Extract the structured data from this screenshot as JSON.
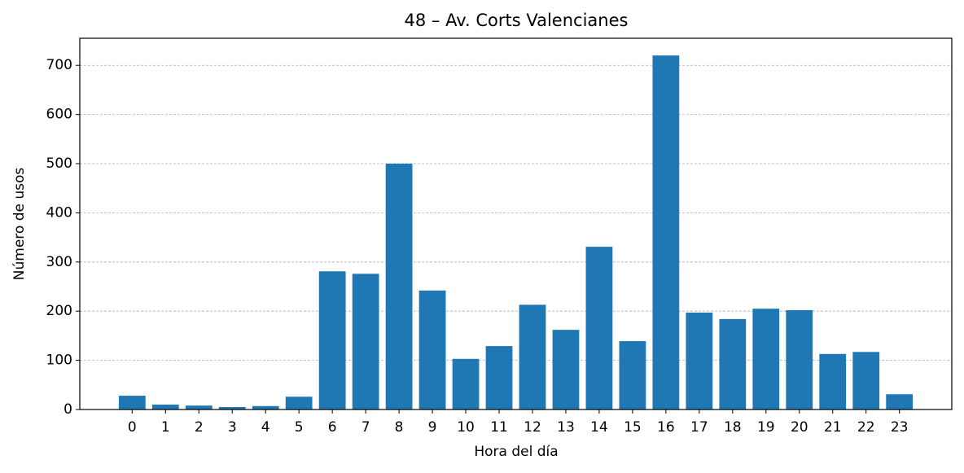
{
  "chart_data": {
    "type": "bar",
    "title": "48 – Av. Corts Valencianes",
    "x_label": "Hora del día",
    "y_label": "Número de usos",
    "categories": [
      "0",
      "1",
      "2",
      "3",
      "4",
      "5",
      "6",
      "7",
      "8",
      "9",
      "10",
      "11",
      "12",
      "13",
      "14",
      "15",
      "16",
      "17",
      "18",
      "19",
      "20",
      "21",
      "22",
      "23"
    ],
    "values": [
      28,
      10,
      8,
      5,
      7,
      26,
      281,
      276,
      500,
      242,
      103,
      129,
      213,
      162,
      331,
      139,
      720,
      197,
      184,
      205,
      202,
      113,
      117,
      31
    ],
    "color": "#1f77b4",
    "ylim": [
      0,
      755
    ],
    "yticks": [
      0,
      100,
      200,
      300,
      400,
      500,
      600,
      700
    ],
    "grid": true
  }
}
